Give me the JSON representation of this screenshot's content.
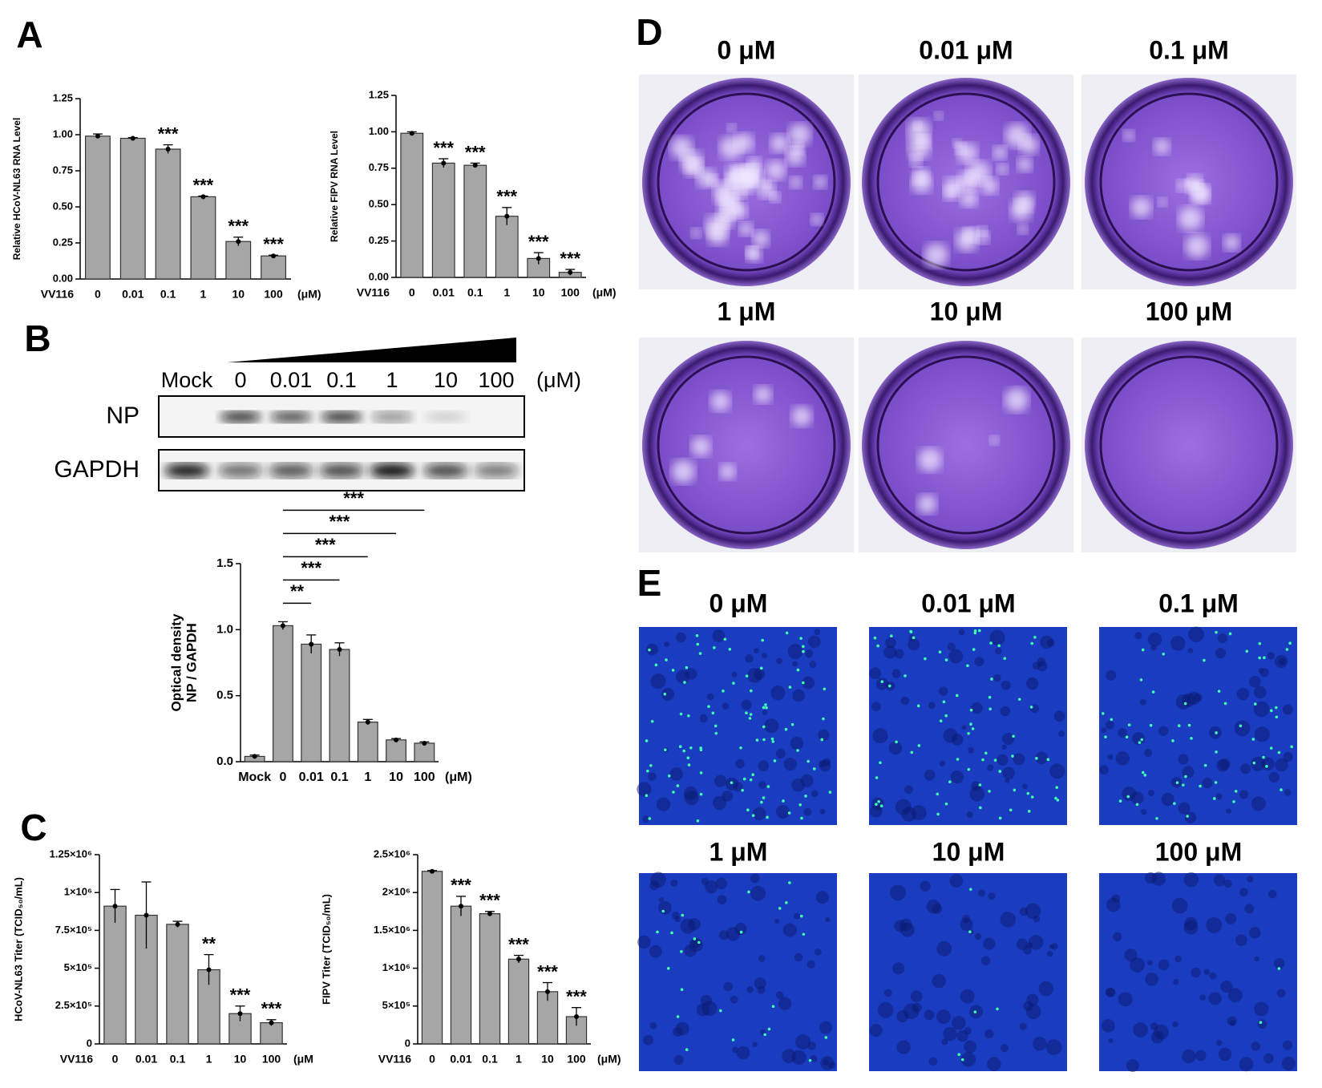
{
  "panel_letters": [
    "A",
    "B",
    "C",
    "D",
    "E"
  ],
  "chart_data": [
    {
      "type": "bar",
      "ylabel": "Relative HCoV-NL63 RNA Level",
      "x_prefix": "VV116",
      "x_unit": "(μM)",
      "color": "#a6a6a6",
      "categories": [
        "0",
        "0.01",
        "0.1",
        "1",
        "10",
        "100"
      ],
      "values": [
        0.99,
        0.975,
        0.9,
        0.57,
        0.26,
        0.16
      ],
      "errors": [
        0.015,
        0.005,
        0.03,
        0.005,
        0.03,
        0.005
      ],
      "significance": [
        null,
        null,
        "***",
        "***",
        "***",
        "***"
      ],
      "ylim": [
        0,
        1.25
      ],
      "yticks": [
        {
          "value": 0,
          "label": "0.00"
        },
        0.25,
        {
          "value": 0.5,
          "label": "0.50"
        },
        0.75,
        {
          "value": 1,
          "label": "1.00"
        },
        1.25
      ]
    },
    {
      "type": "bar",
      "ylabel": "Relative FIPV RNA Level",
      "x_prefix": "VV116",
      "x_unit": "(μM)",
      "color": "#a6a6a6",
      "categories": [
        "0",
        "0.01",
        "0.1",
        "1",
        "10",
        "100"
      ],
      "values": [
        0.99,
        0.785,
        0.77,
        0.42,
        0.13,
        0.035
      ],
      "errors": [
        0.01,
        0.03,
        0.015,
        0.06,
        0.04,
        0.02
      ],
      "significance": [
        null,
        "***",
        "***",
        "***",
        "***",
        "***"
      ],
      "ylim": [
        0,
        1.25
      ],
      "yticks": [
        {
          "value": 0,
          "label": "0.00"
        },
        0.25,
        {
          "value": 0.5,
          "label": "0.50"
        },
        0.75,
        {
          "value": 1,
          "label": "1.00"
        },
        1.25
      ]
    },
    {
      "type": "bar",
      "ylabel": [
        "Optical density",
        "NP / GAPDH"
      ],
      "x_unit": "(μM)",
      "color": "#a6a6a6",
      "categories": [
        "Mock",
        "0",
        "0.01",
        "0.1",
        "1",
        "10",
        "100"
      ],
      "values": [
        0.04,
        1.03,
        0.89,
        0.85,
        0.3,
        0.165,
        0.14
      ],
      "errors": [
        0.01,
        0.03,
        0.07,
        0.05,
        0.02,
        0.01,
        0.01
      ],
      "ylim": [
        0,
        1.5
      ],
      "yticks": [
        {
          "value": 0,
          "label": "0.0"
        },
        0.5,
        {
          "value": 1,
          "label": "1.0"
        },
        1.5
      ],
      "comparisons": [
        {
          "from": "0",
          "to": "0.01",
          "label": "**"
        },
        {
          "from": "0",
          "to": "0.1",
          "label": "***"
        },
        {
          "from": "0",
          "to": "1",
          "label": "***"
        },
        {
          "from": "0",
          "to": "10",
          "label": "***"
        },
        {
          "from": "0",
          "to": "100",
          "label": "***"
        }
      ]
    },
    {
      "type": "bar",
      "ylabel": "HCoV-NL63 Titer (TCID₅₀/mL)",
      "x_prefix": "VV116",
      "x_unit": "(μM",
      "color": "#a6a6a6",
      "categories": [
        "0",
        "0.01",
        "0.1",
        "1",
        "10",
        "100"
      ],
      "values": [
        910000,
        850000,
        790000,
        490000,
        200000,
        140000
      ],
      "errors": [
        110000,
        220000,
        20000,
        100000,
        50000,
        20000
      ],
      "significance": [
        null,
        null,
        null,
        "**",
        "***",
        "***"
      ],
      "ylim": [
        0,
        1250000
      ],
      "yticks": [
        0,
        {
          "value": 250000,
          "label": "2.5×10⁵"
        },
        {
          "value": 500000,
          "label": "5×10⁵"
        },
        {
          "value": 750000,
          "label": "7.5×10⁵"
        },
        {
          "value": 1000000,
          "label": "1×10⁶"
        },
        {
          "value": 1250000,
          "label": "1.25×10⁶"
        }
      ]
    },
    {
      "type": "bar",
      "ylabel": "FIPV Titer (TCID₅₀/mL)",
      "x_prefix": "VV116",
      "x_unit": "(μM)",
      "color": "#a6a6a6",
      "categories": [
        "0",
        "0.01",
        "0.1",
        "1",
        "10",
        "100"
      ],
      "values": [
        2280000,
        1820000,
        1720000,
        1120000,
        690000,
        360000
      ],
      "errors": [
        10000,
        130000,
        30000,
        50000,
        120000,
        120000
      ],
      "significance": [
        null,
        "***",
        "***",
        "***",
        "***",
        "***"
      ],
      "ylim": [
        0,
        2500000
      ],
      "yticks": [
        0,
        {
          "value": 500000,
          "label": "5×10⁵"
        },
        {
          "value": 1000000,
          "label": "1×10⁶"
        },
        {
          "value": 1500000,
          "label": "1.5×10⁶"
        },
        {
          "value": 2000000,
          "label": "2×10⁶"
        },
        {
          "value": 2500000,
          "label": "2.5×10⁶"
        }
      ]
    }
  ],
  "blot": {
    "lanes": [
      "Mock",
      "0",
      "0.01",
      "0.1",
      "1",
      "10",
      "100"
    ],
    "unit": "(μM)",
    "rows": [
      "NP",
      "GAPDH"
    ]
  },
  "plaque_labels": [
    "0 μM",
    "0.01 μM",
    "0.1 μM",
    "1 μM",
    "10 μM",
    "100 μM"
  ],
  "fluorescence_labels": [
    "0 μM",
    "0.01 μM",
    "0.1 μM",
    "1 μM",
    "10 μM",
    "100 μM"
  ]
}
